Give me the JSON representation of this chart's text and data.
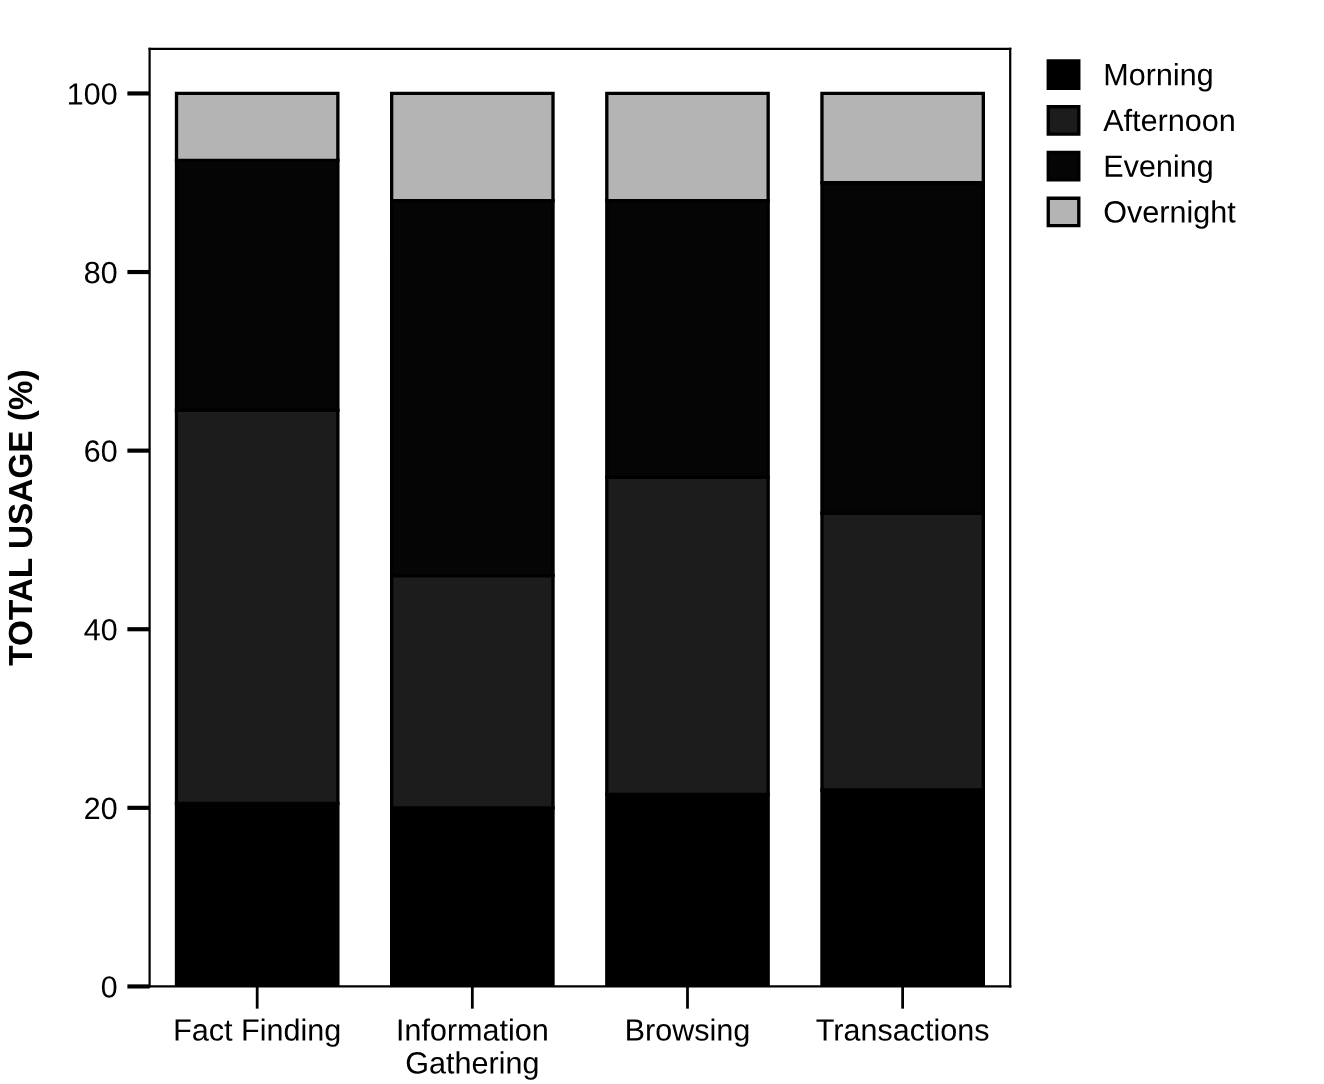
{
  "chart_data": {
    "type": "bar",
    "stacked": true,
    "ylabel": "TOTAL USAGE (%)",
    "categories": [
      "Fact Finding",
      "Information\nGathering",
      "Browsing",
      "Transactions"
    ],
    "series": [
      {
        "name": "Morning",
        "color": "#000000",
        "values": [
          20.5,
          20,
          21.5,
          22
        ]
      },
      {
        "name": "Afternoon",
        "color": "#1c1c1c",
        "values": [
          44,
          26,
          35.5,
          31
        ]
      },
      {
        "name": "Evening",
        "color": "#050505",
        "values": [
          28,
          42,
          31,
          37
        ]
      },
      {
        "name": "Overnight",
        "color": "#b4b4b4",
        "values": [
          7.5,
          12,
          12,
          10
        ]
      }
    ],
    "ylim": [
      0,
      105
    ],
    "yticks": [
      0,
      20,
      40,
      60,
      80,
      100
    ],
    "grid": false,
    "legend": "top right"
  }
}
